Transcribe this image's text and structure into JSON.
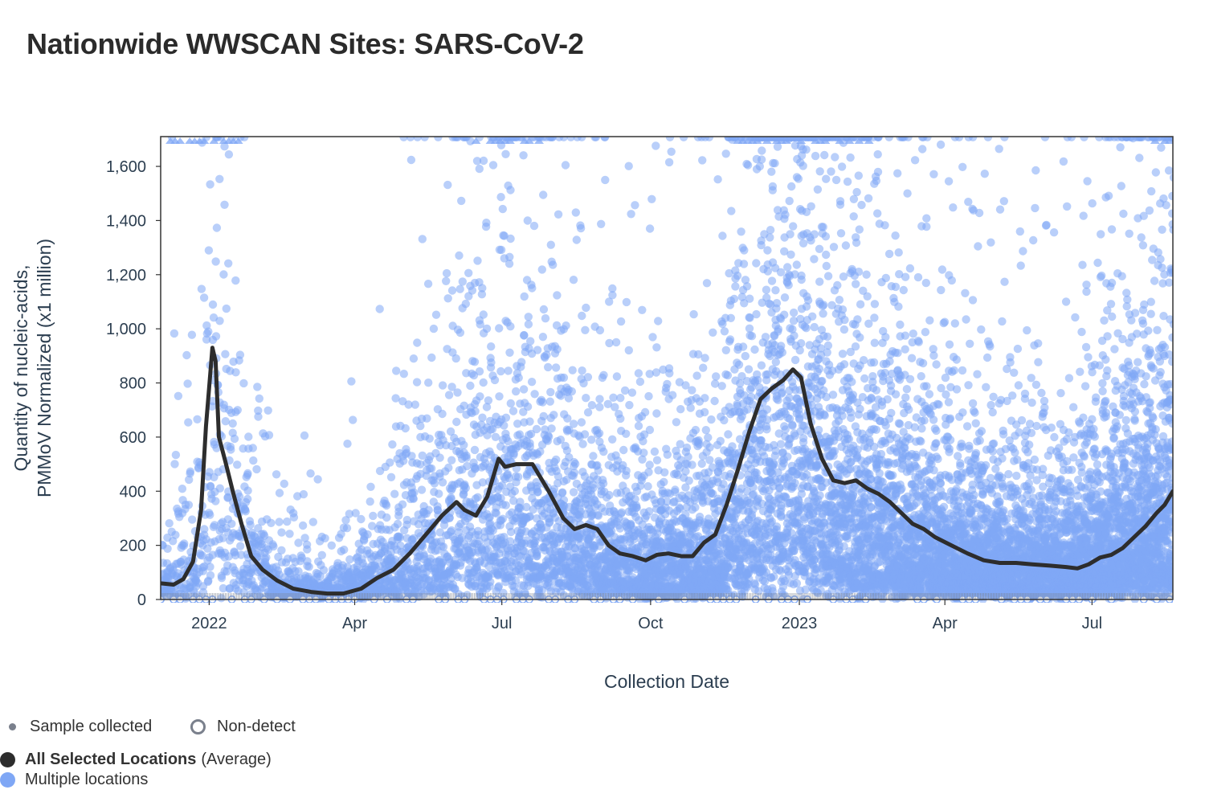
{
  "title": "Nationwide WWSCAN Sites: SARS-CoV-2",
  "colors": {
    "average_line": "#2d2d2d",
    "points": "#7fa7f5",
    "sample_marker": "#7a808c",
    "axis": "#333333",
    "text": "#2c3e50"
  },
  "legend": {
    "sample_collected": "Sample collected",
    "non_detect": "Non-detect",
    "average_bold": "All Selected Locations",
    "average_suffix": "(Average)",
    "multiple_locations": "Multiple locations"
  },
  "chart_data": {
    "type": "scatter",
    "title": "Nationwide WWSCAN Sites: SARS-CoV-2",
    "xlabel": "Collection Date",
    "ylabel": "Quantity of nucleic-acids, PMMoV Normalized (x1 million)",
    "ylabel_lines": [
      "Quantity of nucleic-acids,",
      "PMMoV Normalized (x1 million)"
    ],
    "xlim": [
      "2021-12-02",
      "2023-08-20"
    ],
    "ylim": [
      0,
      1710
    ],
    "x_ticks": [
      {
        "date": "2022-01-01",
        "label": "2022"
      },
      {
        "date": "2022-04-01",
        "label": "Apr"
      },
      {
        "date": "2022-07-01",
        "label": "Jul"
      },
      {
        "date": "2022-10-01",
        "label": "Oct"
      },
      {
        "date": "2023-01-01",
        "label": "2023"
      },
      {
        "date": "2023-04-01",
        "label": "Apr"
      },
      {
        "date": "2023-07-01",
        "label": "Jul"
      }
    ],
    "y_ticks": [
      {
        "value": 0,
        "label": "0"
      },
      {
        "value": 200,
        "label": "200"
      },
      {
        "value": 400,
        "label": "400"
      },
      {
        "value": 600,
        "label": "600"
      },
      {
        "value": 800,
        "label": "800"
      },
      {
        "value": 1000,
        "label": "1,000"
      },
      {
        "value": 1200,
        "label": "1,200"
      },
      {
        "value": 1400,
        "label": "1,400"
      },
      {
        "value": 1600,
        "label": "1,600"
      }
    ],
    "grid": false,
    "series": [
      {
        "name": "All Selected Locations (Average)",
        "kind": "line",
        "points": [
          [
            "2021-12-02",
            60
          ],
          [
            "2021-12-10",
            55
          ],
          [
            "2021-12-16",
            75
          ],
          [
            "2021-12-22",
            140
          ],
          [
            "2021-12-27",
            330
          ],
          [
            "2021-12-30",
            640
          ],
          [
            "2022-01-03",
            930
          ],
          [
            "2022-01-05",
            880
          ],
          [
            "2022-01-07",
            600
          ],
          [
            "2022-01-11",
            510
          ],
          [
            "2022-01-16",
            390
          ],
          [
            "2022-01-21",
            280
          ],
          [
            "2022-01-27",
            160
          ],
          [
            "2022-02-03",
            110
          ],
          [
            "2022-02-12",
            70
          ],
          [
            "2022-02-22",
            40
          ],
          [
            "2022-03-05",
            28
          ],
          [
            "2022-03-15",
            22
          ],
          [
            "2022-03-25",
            22
          ],
          [
            "2022-04-05",
            40
          ],
          [
            "2022-04-15",
            80
          ],
          [
            "2022-04-25",
            110
          ],
          [
            "2022-05-05",
            170
          ],
          [
            "2022-05-15",
            240
          ],
          [
            "2022-05-25",
            310
          ],
          [
            "2022-06-03",
            360
          ],
          [
            "2022-06-08",
            330
          ],
          [
            "2022-06-15",
            310
          ],
          [
            "2022-06-22",
            380
          ],
          [
            "2022-06-29",
            520
          ],
          [
            "2022-07-03",
            490
          ],
          [
            "2022-07-10",
            500
          ],
          [
            "2022-07-20",
            500
          ],
          [
            "2022-07-30",
            400
          ],
          [
            "2022-08-08",
            300
          ],
          [
            "2022-08-15",
            260
          ],
          [
            "2022-08-22",
            275
          ],
          [
            "2022-08-29",
            260
          ],
          [
            "2022-09-05",
            200
          ],
          [
            "2022-09-12",
            170
          ],
          [
            "2022-09-20",
            160
          ],
          [
            "2022-09-28",
            145
          ],
          [
            "2022-10-05",
            165
          ],
          [
            "2022-10-12",
            170
          ],
          [
            "2022-10-20",
            160
          ],
          [
            "2022-10-27",
            160
          ],
          [
            "2022-11-03",
            210
          ],
          [
            "2022-11-10",
            240
          ],
          [
            "2022-11-17",
            350
          ],
          [
            "2022-11-24",
            480
          ],
          [
            "2022-12-01",
            620
          ],
          [
            "2022-12-08",
            740
          ],
          [
            "2022-12-15",
            780
          ],
          [
            "2022-12-22",
            810
          ],
          [
            "2022-12-28",
            850
          ],
          [
            "2023-01-02",
            820
          ],
          [
            "2023-01-08",
            650
          ],
          [
            "2023-01-15",
            520
          ],
          [
            "2023-01-22",
            440
          ],
          [
            "2023-01-29",
            430
          ],
          [
            "2023-02-05",
            440
          ],
          [
            "2023-02-12",
            410
          ],
          [
            "2023-02-19",
            390
          ],
          [
            "2023-02-26",
            360
          ],
          [
            "2023-03-05",
            320
          ],
          [
            "2023-03-12",
            280
          ],
          [
            "2023-03-19",
            260
          ],
          [
            "2023-03-26",
            230
          ],
          [
            "2023-04-05",
            200
          ],
          [
            "2023-04-15",
            170
          ],
          [
            "2023-04-25",
            145
          ],
          [
            "2023-05-05",
            135
          ],
          [
            "2023-05-15",
            135
          ],
          [
            "2023-05-25",
            130
          ],
          [
            "2023-06-05",
            125
          ],
          [
            "2023-06-15",
            120
          ],
          [
            "2023-06-22",
            115
          ],
          [
            "2023-06-29",
            130
          ],
          [
            "2023-07-06",
            155
          ],
          [
            "2023-07-13",
            165
          ],
          [
            "2023-07-20",
            190
          ],
          [
            "2023-07-27",
            230
          ],
          [
            "2023-08-03",
            270
          ],
          [
            "2023-08-10",
            320
          ],
          [
            "2023-08-15",
            350
          ],
          [
            "2023-08-20",
            400
          ]
        ]
      },
      {
        "name": "Multiple locations",
        "kind": "scatter",
        "description_points": "individual site samples; density envelope median by date",
        "median_envelope": [
          [
            "2021-12-02",
            60
          ],
          [
            "2021-12-25",
            250
          ],
          [
            "2022-01-04",
            900
          ],
          [
            "2022-01-15",
            420
          ],
          [
            "2022-02-10",
            90
          ],
          [
            "2022-03-15",
            40
          ],
          [
            "2022-04-15",
            120
          ],
          [
            "2022-06-01",
            380
          ],
          [
            "2022-07-05",
            500
          ],
          [
            "2022-08-15",
            300
          ],
          [
            "2022-10-01",
            180
          ],
          [
            "2022-11-10",
            250
          ],
          [
            "2022-12-20",
            800
          ],
          [
            "2023-02-01",
            450
          ],
          [
            "2023-04-01",
            220
          ],
          [
            "2023-06-15",
            160
          ],
          [
            "2023-08-20",
            450
          ]
        ]
      }
    ],
    "legend_entries": [
      "Sample collected",
      "Non-detect",
      "All Selected Locations (Average)",
      "Multiple locations"
    ]
  }
}
